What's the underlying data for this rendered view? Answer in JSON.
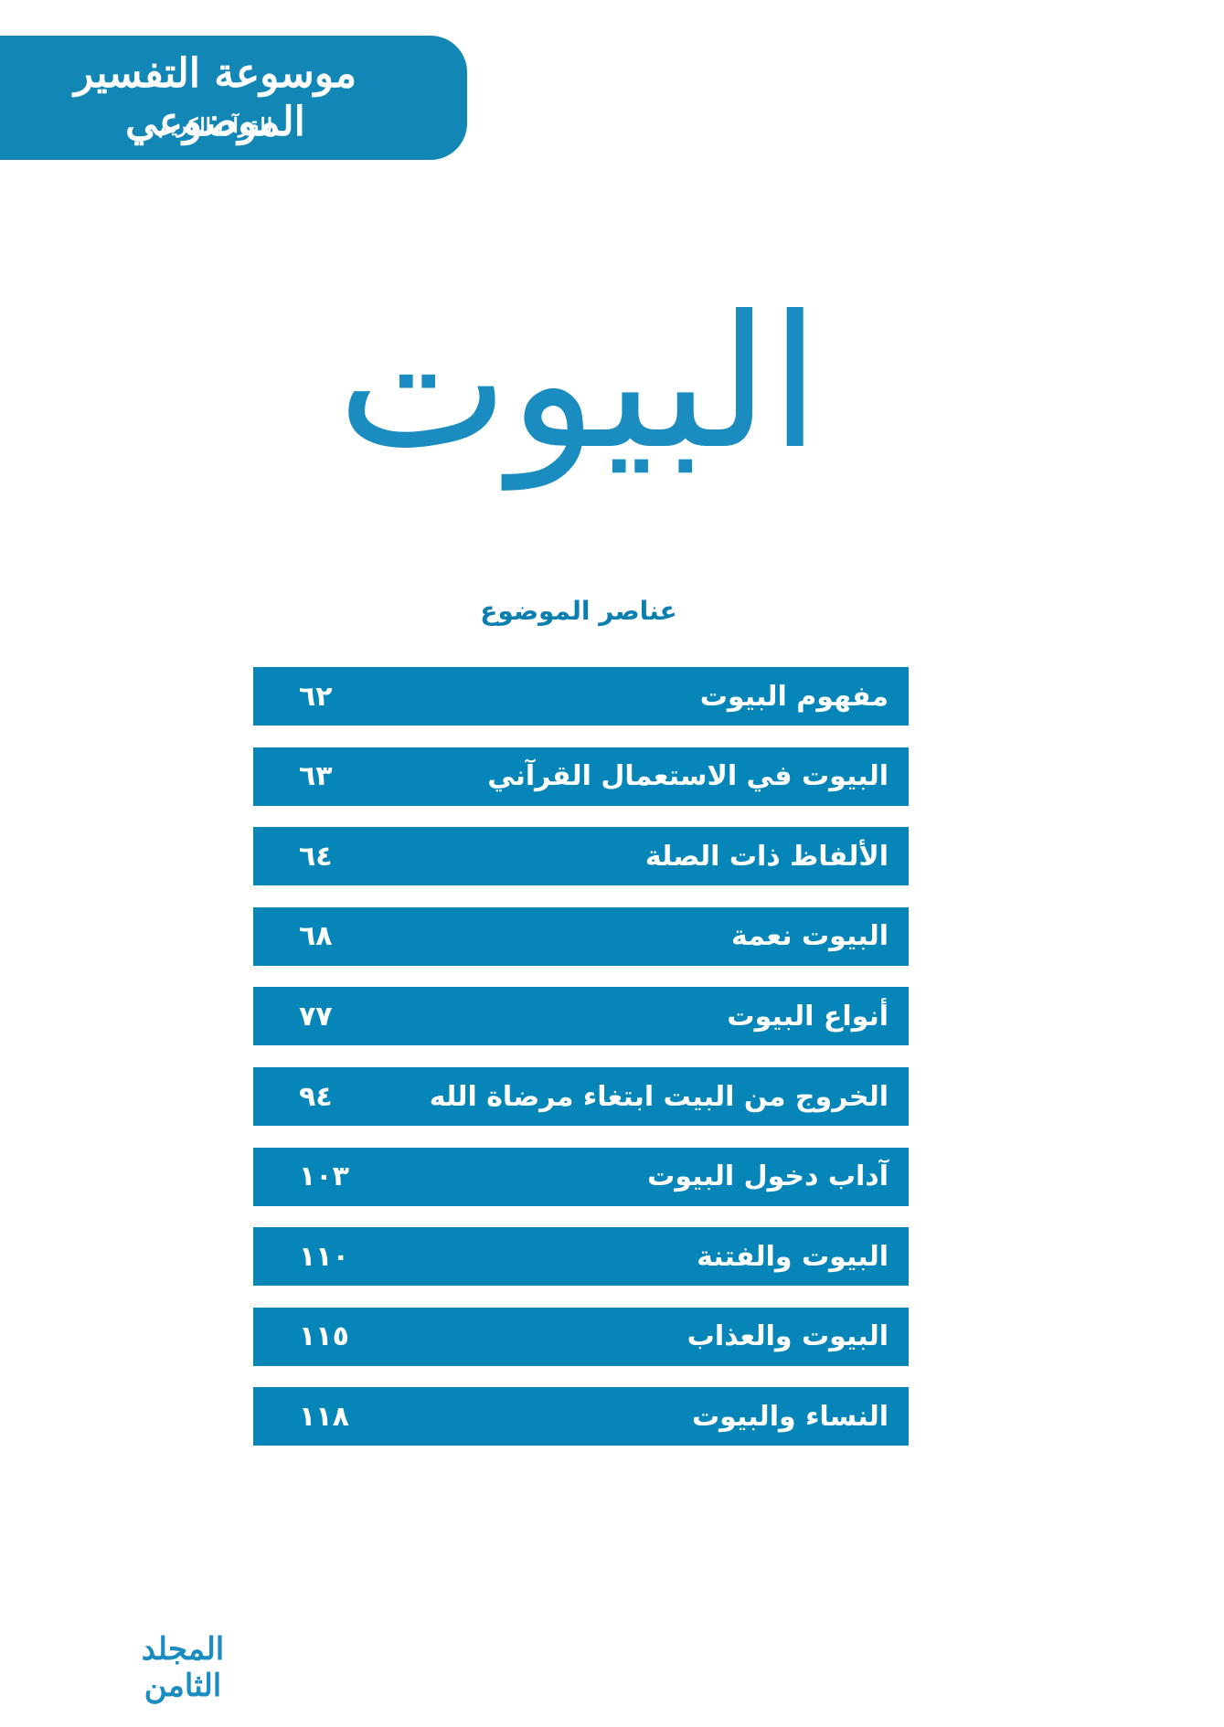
{
  "header": {
    "title": "موسوعة التفسير الموضوعي",
    "subtitle": "للقرآن الكريم"
  },
  "title": "البيوت",
  "toc": {
    "heading": "عناصر الموضوع",
    "items": [
      {
        "title": "مفهوم البيوت",
        "page": "٦٢"
      },
      {
        "title": "البيوت في الاستعمال القرآني",
        "page": "٦٣"
      },
      {
        "title": "الألفاظ ذات الصلة",
        "page": "٦٤"
      },
      {
        "title": "البيوت نعمة",
        "page": "٦٨"
      },
      {
        "title": "أنواع البيوت",
        "page": "٧٧"
      },
      {
        "title": "الخروج من البيت ابتغاء مرضاة الله",
        "page": "٩٤"
      },
      {
        "title": "آداب دخول البيوت",
        "page": "١٠٣"
      },
      {
        "title": "البيوت والفتنة",
        "page": "١١٠"
      },
      {
        "title": "البيوت والعذاب",
        "page": "١١٥"
      },
      {
        "title": "النساء والبيوت",
        "page": "١١٨"
      }
    ]
  },
  "footer": {
    "volume": "المجلد الثامن"
  }
}
